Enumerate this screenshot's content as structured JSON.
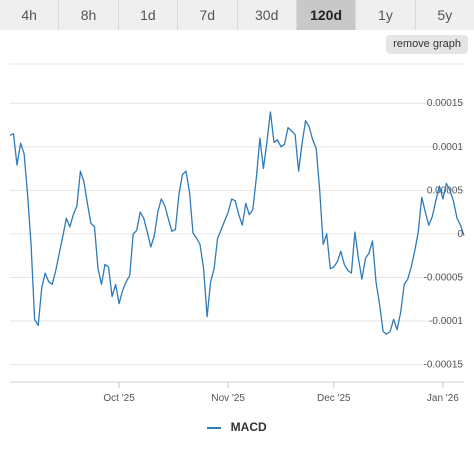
{
  "timeframes": {
    "tabs": [
      "4h",
      "8h",
      "1d",
      "7d",
      "30d",
      "120d",
      "1y",
      "5y"
    ],
    "active": "120d"
  },
  "remove_graph_label": "remove graph",
  "chart_data": {
    "type": "line",
    "series": [
      {
        "name": "MACD",
        "color": "#2f7ab8",
        "x": [
          "2025-08-31",
          "2025-09-01",
          "2025-09-02",
          "2025-09-03",
          "2025-09-04",
          "2025-09-05",
          "2025-09-06",
          "2025-09-07",
          "2025-09-08",
          "2025-09-09",
          "2025-09-10",
          "2025-09-11",
          "2025-09-12",
          "2025-09-13",
          "2025-09-14",
          "2025-09-15",
          "2025-09-16",
          "2025-09-17",
          "2025-09-18",
          "2025-09-19",
          "2025-09-20",
          "2025-09-21",
          "2025-09-22",
          "2025-09-23",
          "2025-09-24",
          "2025-09-25",
          "2025-09-26",
          "2025-09-27",
          "2025-09-28",
          "2025-09-29",
          "2025-09-30",
          "2025-10-01",
          "2025-10-02",
          "2025-10-03",
          "2025-10-04",
          "2025-10-05",
          "2025-10-06",
          "2025-10-07",
          "2025-10-08",
          "2025-10-09",
          "2025-10-10",
          "2025-10-11",
          "2025-10-12",
          "2025-10-13",
          "2025-10-14",
          "2025-10-15",
          "2025-10-16",
          "2025-10-17",
          "2025-10-18",
          "2025-10-19",
          "2025-10-20",
          "2025-10-21",
          "2025-10-22",
          "2025-10-23",
          "2025-10-24",
          "2025-10-25",
          "2025-10-26",
          "2025-10-27",
          "2025-10-28",
          "2025-10-29",
          "2025-10-30",
          "2025-10-31",
          "2025-11-01",
          "2025-11-02",
          "2025-11-03",
          "2025-11-04",
          "2025-11-05",
          "2025-11-06",
          "2025-11-07",
          "2025-11-08",
          "2025-11-09",
          "2025-11-10",
          "2025-11-11",
          "2025-11-12",
          "2025-11-13",
          "2025-11-14",
          "2025-11-15",
          "2025-11-16",
          "2025-11-17",
          "2025-11-18",
          "2025-11-19",
          "2025-11-20",
          "2025-11-21",
          "2025-11-22",
          "2025-11-23",
          "2025-11-24",
          "2025-11-25",
          "2025-11-26",
          "2025-11-27",
          "2025-11-28",
          "2025-11-29",
          "2025-11-30",
          "2025-12-01",
          "2025-12-02",
          "2025-12-03",
          "2025-12-04",
          "2025-12-05",
          "2025-12-06",
          "2025-12-07",
          "2025-12-08",
          "2025-12-09",
          "2025-12-10",
          "2025-12-11",
          "2025-12-12",
          "2025-12-13",
          "2025-12-14",
          "2025-12-15",
          "2025-12-16",
          "2025-12-17",
          "2025-12-18",
          "2025-12-19",
          "2025-12-20",
          "2025-12-21",
          "2025-12-22",
          "2025-12-23",
          "2025-12-24",
          "2025-12-25",
          "2025-12-26",
          "2025-12-27",
          "2025-12-28",
          "2025-12-29",
          "2025-12-30",
          "2025-12-31",
          "2026-01-01",
          "2026-01-02",
          "2026-01-03",
          "2026-01-04",
          "2026-01-05",
          "2026-01-06",
          "2026-01-07"
        ],
        "y": [
          0.000113,
          0.000115,
          7.9e-05,
          0.000104,
          9.2e-05,
          4.5e-05,
          -1.3e-05,
          -9.8e-05,
          -0.000105,
          -6.2e-05,
          -4.5e-05,
          -5.5e-05,
          -5.8e-05,
          -4.2e-05,
          -2.2e-05,
          -3e-06,
          1.8e-05,
          8e-06,
          2.2e-05,
          3.2e-05,
          7.2e-05,
          6e-05,
          3.5e-05,
          1.2e-05,
          8e-06,
          -4e-05,
          -5.8e-05,
          -3.5e-05,
          -3.8e-05,
          -7.2e-05,
          -5.8e-05,
          -8e-05,
          -6.5e-05,
          -5.5e-05,
          -4.8e-05,
          0.0,
          4e-06,
          2.5e-05,
          1.8e-05,
          2e-06,
          -1.5e-05,
          -2e-06,
          2.5e-05,
          4e-05,
          3.2e-05,
          1.7e-05,
          3e-06,
          5e-06,
          4.5e-05,
          6.8e-05,
          7.2e-05,
          4.8e-05,
          1e-06,
          -5e-06,
          -1.2e-05,
          -4e-05,
          -9.5e-05,
          -5.5e-05,
          -4e-05,
          -5e-06,
          5e-06,
          1.5e-05,
          2.5e-05,
          4e-05,
          3.8e-05,
          2.2e-05,
          1e-05,
          3.5e-05,
          2.2e-05,
          2.8e-05,
          6.5e-05,
          0.00011,
          7.5e-05,
          0.000105,
          0.00014,
          0.000105,
          0.000108,
          0.0001,
          0.000103,
          0.000122,
          0.000118,
          0.000114,
          7.2e-05,
          0.000104,
          0.00013,
          0.000123,
          0.000108,
          9.8e-05,
          5e-05,
          -1.2e-05,
          0.0,
          -4e-05,
          -3.8e-05,
          -3.2e-05,
          -2e-05,
          -3.5e-05,
          -4.2e-05,
          -4.5e-05,
          2e-06,
          -2.8e-05,
          -5.2e-05,
          -2.8e-05,
          -2.2e-05,
          -8e-06,
          -5.5e-05,
          -8e-05,
          -0.000112,
          -0.000115,
          -0.000112,
          -9.8e-05,
          -0.00011,
          -9e-05,
          -5.8e-05,
          -5.2e-05,
          -3.8e-05,
          -2e-05,
          2e-06,
          4.2e-05,
          2.5e-05,
          1e-05,
          2e-05,
          3.8e-05,
          5.5e-05,
          4e-05,
          5.8e-05,
          5e-05,
          3.8e-05,
          1.8e-05,
          1e-05,
          -2e-06
        ]
      }
    ],
    "x_ticks": [
      {
        "value": "2025-10-01",
        "label": "Oct '25"
      },
      {
        "value": "2025-11-01",
        "label": "Nov '25"
      },
      {
        "value": "2025-12-01",
        "label": "Dec '25"
      },
      {
        "value": "2026-01-01",
        "label": "Jan '26"
      }
    ],
    "y_ticks": [
      {
        "value": 0.00015,
        "label": "0.00015"
      },
      {
        "value": 0.0001,
        "label": "0.0001"
      },
      {
        "value": 5e-05,
        "label": "0.00005"
      },
      {
        "value": 0,
        "label": "0"
      },
      {
        "value": -5e-05,
        "label": "-0.00005"
      },
      {
        "value": -0.0001,
        "label": "-0.0001"
      },
      {
        "value": -0.00015,
        "label": "-0.00015"
      }
    ],
    "xlim": [
      "2025-08-31",
      "2026-01-07"
    ],
    "ylim": [
      -0.00017,
      0.000195
    ],
    "grid": true,
    "legend": "bottom-center"
  }
}
